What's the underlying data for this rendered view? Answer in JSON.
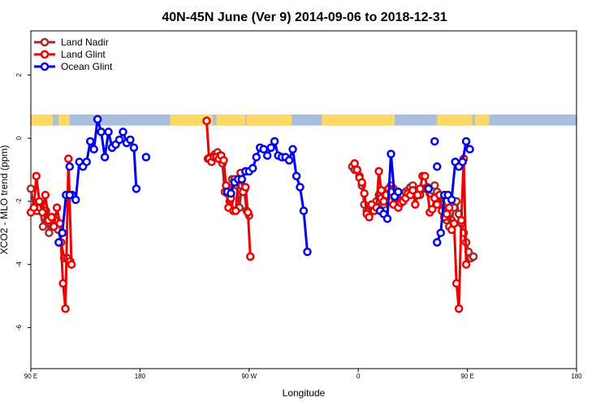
{
  "chart_data": {
    "type": "line",
    "title": "40N-45N June (Ver 9)   2014-09-06 to 2018-12-31",
    "xlabel": "Longitude",
    "ylabel": "XCO2 - MLO trend (ppm)",
    "xlim": [
      90,
      540
    ],
    "ylim": [
      -7.3,
      3.4
    ],
    "x_ticks": [
      {
        "value": 90,
        "label": "90 E"
      },
      {
        "value": 180,
        "label": "180"
      },
      {
        "value": 270,
        "label": "90 W"
      },
      {
        "value": 360,
        "label": "0"
      },
      {
        "value": 450,
        "label": "90 E"
      },
      {
        "value": 540,
        "label": "180"
      }
    ],
    "y_ticks": [
      {
        "value": 2,
        "label": "2"
      },
      {
        "value": 0,
        "label": "0"
      },
      {
        "value": -2,
        "label": "-2"
      },
      {
        "value": -4,
        "label": "-4"
      },
      {
        "value": -6,
        "label": "-6"
      }
    ],
    "legend": {
      "position": "top-left"
    },
    "land_ocean_band": {
      "y_range": [
        0.4,
        0.75
      ],
      "land_color": "#ffd966",
      "ocean_color": "#a8bfe0"
    },
    "series": [
      {
        "name": "Land Nadir",
        "color": "#a52a2a",
        "segments": [
          [
            [
              90,
              -1.6
            ],
            [
              92.5,
              -2.2
            ],
            [
              95,
              -2.3
            ],
            [
              97.5,
              -2.2
            ],
            [
              100,
              -2.8
            ],
            [
              102.5,
              -2.3
            ],
            [
              105,
              -3.0
            ],
            [
              107.5,
              -2.5
            ],
            [
              110,
              -2.6
            ],
            [
              112.5,
              -2.9
            ],
            [
              115,
              -3.3
            ],
            [
              117.5,
              -3.8
            ],
            [
              120,
              -3.8
            ],
            [
              122.5,
              -3.9
            ]
          ],
          [
            [
              236,
              -0.65
            ],
            [
              238,
              -0.6
            ],
            [
              240,
              -0.6
            ],
            [
              242,
              -0.5
            ],
            [
              244,
              -0.45
            ],
            [
              246,
              -0.55
            ],
            [
              248,
              -0.8
            ],
            [
              250,
              -1.7
            ],
            [
              252,
              -1.75
            ],
            [
              254,
              -2.0
            ],
            [
              256,
              -1.3
            ],
            [
              258,
              -1.3
            ],
            [
              260,
              -1.5
            ],
            [
              262,
              -2.2
            ],
            [
              264,
              -1.5
            ],
            [
              266,
              -1.65
            ],
            [
              268,
              -2.3
            ],
            [
              270,
              -2.45
            ]
          ],
          [
            [
              355,
              -0.9
            ],
            [
              357,
              -1.0
            ],
            [
              359,
              -1.0
            ],
            [
              361,
              -1.2
            ],
            [
              363,
              -1.5
            ],
            [
              365,
              -2.1
            ],
            [
              367,
              -2.3
            ],
            [
              369,
              -2.4
            ],
            [
              371,
              -2.2
            ],
            [
              373,
              -2.1
            ],
            [
              375,
              -2.0
            ],
            [
              377,
              -1.8
            ],
            [
              379,
              -1.9
            ],
            [
              381,
              -2.1
            ],
            [
              383,
              -1.9
            ],
            [
              385,
              -1.7
            ],
            [
              387,
              -1.5
            ],
            [
              389,
              -1.6
            ],
            [
              391,
              -1.8
            ],
            [
              393,
              -1.9
            ],
            [
              395,
              -1.8
            ],
            [
              397,
              -1.8
            ],
            [
              399,
              -1.7
            ],
            [
              401,
              -1.65
            ],
            [
              403,
              -1.55
            ],
            [
              405,
              -1.5
            ],
            [
              407,
              -1.65
            ],
            [
              409,
              -1.7
            ],
            [
              411,
              -1.8
            ],
            [
              413,
              -1.6
            ],
            [
              415,
              -1.6
            ],
            [
              417,
              -1.55
            ],
            [
              419,
              -1.75
            ],
            [
              421,
              -1.65
            ],
            [
              423,
              -1.5
            ],
            [
              425,
              -1.7
            ],
            [
              427,
              -1.9
            ],
            [
              429,
              -2.1
            ],
            [
              431,
              -2.3
            ],
            [
              433,
              -2.6
            ],
            [
              435,
              -2.8
            ],
            [
              437,
              -2.6
            ],
            [
              439,
              -2.2
            ],
            [
              441,
              -2.0
            ],
            [
              443,
              -2.4
            ],
            [
              445,
              -2.7
            ],
            [
              447,
              -3.0
            ],
            [
              449,
              -3.3
            ],
            [
              451,
              -3.6
            ],
            [
              453,
              -3.8
            ],
            [
              455,
              -3.75
            ]
          ]
        ]
      },
      {
        "name": "Land Glint",
        "color": "#ee0000",
        "segments": [
          [
            [
              90,
              -2.35
            ],
            [
              92.5,
              -2.2
            ],
            [
              94.5,
              -1.2
            ],
            [
              97,
              -2.0
            ],
            [
              99.5,
              -2.35
            ],
            [
              102,
              -1.8
            ],
            [
              104.5,
              -2.6
            ],
            [
              107,
              -2.5
            ],
            [
              109,
              -2.8
            ],
            [
              111.5,
              -2.2
            ],
            [
              114,
              -2.7
            ],
            [
              116.5,
              -4.6
            ],
            [
              118.5,
              -5.4
            ],
            [
              121,
              -0.65
            ],
            [
              123.5,
              -4.0
            ]
          ],
          [
            [
              235,
              0.55
            ],
            [
              237,
              -0.65
            ],
            [
              239,
              -0.75
            ],
            [
              241,
              -0.6
            ],
            [
              243,
              -0.6
            ],
            [
              245,
              -0.65
            ],
            [
              247,
              -0.55
            ],
            [
              249,
              -0.7
            ],
            [
              251,
              -1.5
            ],
            [
              253,
              -2.2
            ],
            [
              255,
              -1.9
            ],
            [
              257,
              -2.3
            ],
            [
              259,
              -2.3
            ],
            [
              261,
              -1.3
            ],
            [
              263,
              -1.1
            ],
            [
              265,
              -1.7
            ],
            [
              267,
              -1.55
            ],
            [
              269,
              -2.35
            ],
            [
              271,
              -3.75
            ]
          ],
          [
            [
              357,
              -0.8
            ],
            [
              359,
              -1.0
            ],
            [
              361,
              -1.25
            ],
            [
              363,
              -1.4
            ],
            [
              365,
              -1.75
            ],
            [
              367,
              -2.4
            ],
            [
              369,
              -2.5
            ],
            [
              371,
              -2.1
            ],
            [
              373,
              -2.3
            ],
            [
              375,
              -2.2
            ],
            [
              377,
              -1.05
            ],
            [
              379,
              -1.65
            ],
            [
              381,
              -2.0
            ],
            [
              383,
              -1.8
            ],
            [
              385,
              -1.6
            ],
            [
              387,
              -1.7
            ],
            [
              389,
              -2.1
            ],
            [
              391,
              -1.9
            ],
            [
              393,
              -2.2
            ],
            [
              395,
              -2.05
            ],
            [
              397,
              -2.0
            ],
            [
              399,
              -1.9
            ],
            [
              401,
              -1.75
            ],
            [
              403,
              -1.8
            ],
            [
              405,
              -1.65
            ],
            [
              407,
              -2.1
            ],
            [
              409,
              -1.8
            ],
            [
              411,
              -1.6
            ],
            [
              413,
              -1.2
            ],
            [
              415,
              -1.2
            ],
            [
              417,
              -1.6
            ],
            [
              419,
              -2.35
            ],
            [
              421,
              -2.25
            ],
            [
              423,
              -1.9
            ],
            [
              425,
              -2.1
            ],
            [
              427,
              -1.8
            ],
            [
              429,
              -2.3
            ],
            [
              431,
              -2.5
            ],
            [
              433,
              -2.4
            ],
            [
              435,
              -2.2
            ],
            [
              437,
              -2.9
            ],
            [
              439,
              -2.7
            ],
            [
              441,
              -4.6
            ],
            [
              443,
              -5.4
            ],
            [
              445,
              -2.6
            ],
            [
              447,
              -0.65
            ],
            [
              449,
              -4.0
            ]
          ]
        ]
      },
      {
        "name": "Ocean Glint",
        "color": "#0000ee",
        "segments": [
          [
            [
              122,
              -1.8
            ],
            [
              124,
              -1.8
            ],
            [
              127,
              -1.95
            ],
            [
              130,
              -0.75
            ],
            [
              133,
              -0.9
            ],
            [
              136,
              -0.75
            ],
            [
              139,
              -0.1
            ],
            [
              142,
              -0.35
            ],
            [
              145,
              0.6
            ],
            [
              148,
              0.2
            ],
            [
              151,
              -0.6
            ],
            [
              154,
              0.2
            ],
            [
              157,
              -0.3
            ],
            [
              160,
              -0.2
            ],
            [
              163,
              -0.05
            ],
            [
              166,
              0.2
            ],
            [
              169,
              -0.15
            ],
            [
              172,
              -0.05
            ],
            [
              175,
              -0.3
            ],
            [
              177,
              -1.6
            ]
          ],
          [
            [
              113,
              -3.3
            ],
            [
              116,
              -3.0
            ],
            [
              119,
              -1.8
            ],
            [
              122,
              -1.8
            ]
          ],
          [
            [
              252,
              -1.7
            ],
            [
              255,
              -1.75
            ],
            [
              258,
              -1.4
            ],
            [
              261,
              -1.3
            ],
            [
              264,
              -1.3
            ],
            [
              267,
              -1.05
            ],
            [
              270,
              -1.05
            ],
            [
              273,
              -0.95
            ],
            [
              276,
              -0.6
            ],
            [
              279,
              -0.3
            ],
            [
              282,
              -0.35
            ],
            [
              285,
              -0.55
            ],
            [
              288,
              -0.3
            ],
            [
              291,
              -0.1
            ],
            [
              294,
              -0.55
            ],
            [
              297,
              -0.6
            ],
            [
              300,
              -0.6
            ],
            [
              303,
              -0.7
            ],
            [
              306,
              -0.35
            ],
            [
              309,
              -1.2
            ],
            [
              312,
              -1.55
            ],
            [
              315,
              -2.3
            ],
            [
              318,
              -3.6
            ]
          ],
          [
            [
              378,
              -2.3
            ],
            [
              381,
              -2.4
            ],
            [
              384,
              -2.55
            ],
            [
              387,
              -0.5
            ],
            [
              390,
              -1.85
            ],
            [
              393,
              -1.7
            ]
          ],
          [
            [
              425,
              -3.3
            ],
            [
              428,
              -3.0
            ],
            [
              431,
              -1.8
            ],
            [
              434,
              -1.8
            ],
            [
              437,
              -1.95
            ],
            [
              440,
              -0.75
            ],
            [
              443,
              -0.9
            ],
            [
              446,
              -0.75
            ],
            [
              449,
              -0.1
            ],
            [
              452,
              -0.35
            ]
          ]
        ],
        "points": [
          [
            122,
            -0.9
          ],
          [
            185,
            -0.6
          ],
          [
            418,
            -1.6
          ],
          [
            423,
            -0.1
          ],
          [
            425,
            -0.9
          ]
        ]
      }
    ]
  }
}
